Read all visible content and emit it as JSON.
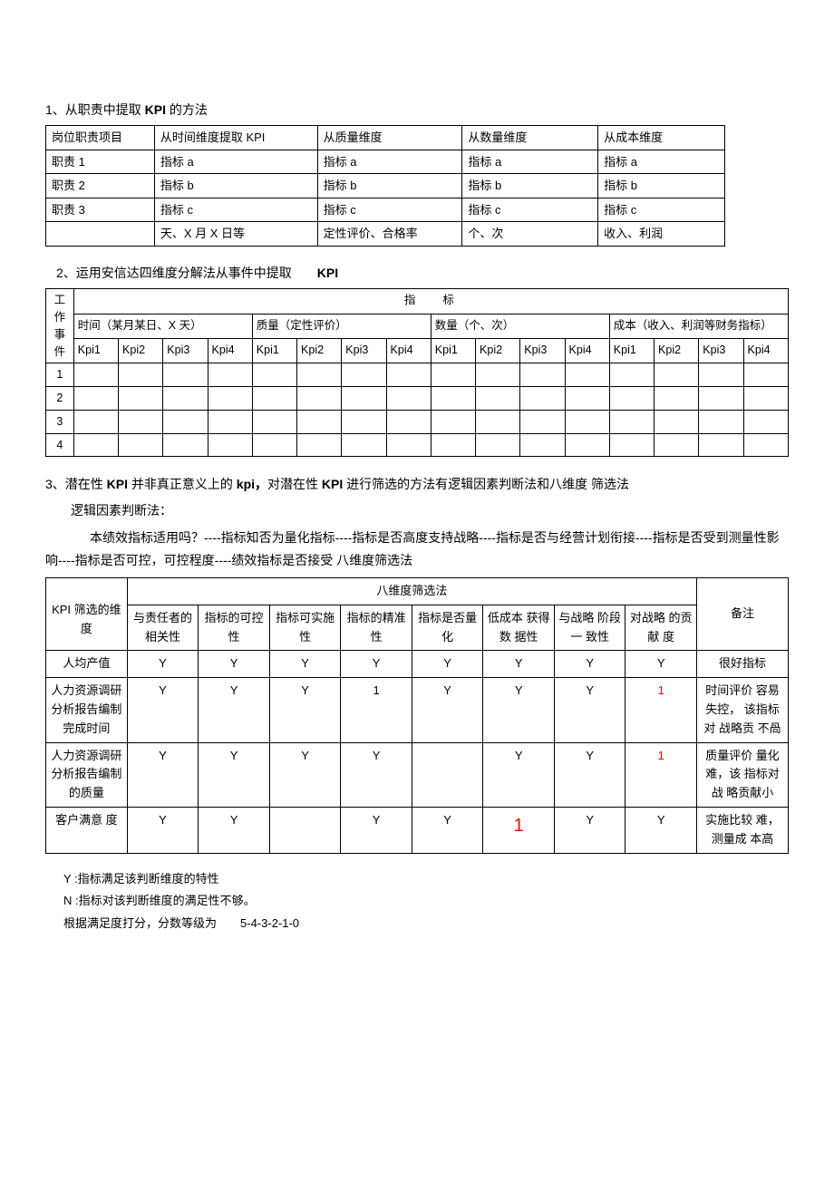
{
  "section1": {
    "title_prefix": "1、从职责中提取",
    "title_bold": " KPI ",
    "title_suffix": "的方法",
    "header": [
      "岗位职责项目",
      "从时间维度提取 KPI",
      "从质量维度",
      "从数量维度",
      "从成本维度"
    ],
    "rows": [
      [
        "职责 1",
        "指标 a",
        "指标 a",
        "指标 a",
        "指标 a"
      ],
      [
        "职责 2",
        "指标 b",
        "指标 b",
        "指标 b",
        "指标 b"
      ],
      [
        "职责 3",
        "指标 c",
        "指标 c",
        "指标 c",
        "指标 c"
      ],
      [
        "",
        "天、X 月 X 日等",
        "定性评价、合格率",
        "个、次",
        "收入、利润"
      ]
    ]
  },
  "section2": {
    "title_prefix": "2、运用安信达四维度分解法从事件中提取",
    "title_bold": "　　KPI",
    "rowhead_label": "工作事件",
    "lvl1": "指标",
    "lvl2": [
      "时间（某月某日、X 天）",
      "质量（定性评价）",
      "数量（个、次）",
      "成本（收入、利润等财务指标）"
    ],
    "kpi_labels": [
      "Kpi1",
      "Kpi2",
      "Kpi3",
      "Kpi4"
    ],
    "event_rows": [
      "1",
      "2",
      "3",
      "4"
    ]
  },
  "section3": {
    "line1_a": "3、潜在性",
    "line1_b": " KPI ",
    "line1_c": "并非真正意义上的",
    "line1_d": " kpi，",
    "line1_e": "对潜在性",
    "line1_f": " KPI ",
    "line1_g": "进行筛选的方法有逻辑因素判断法和八维度 筛选法",
    "line2": "逻辑因素判断法：",
    "line3": "本绩效指标适用吗？----指标知否为量化指标----指标是否高度支持战略----指标是否与经营计划衔接----指标是否受到测量性影响----指标是否可控，可控程度----绩效指标是否接受  八维度筛选法",
    "tbl": {
      "rowhead": "KPI 筛选的维度",
      "lvl1": "八维度筛选法",
      "dims": [
        "与责任者的相关性",
        "指标的可控性",
        "指标可实施性",
        "指标的精准性",
        "指标是否量化",
        "低成本 获得数 据性",
        "与战略 阶段一 致性",
        "对战略 的贡献 度"
      ],
      "remark_head": "备注",
      "rows": [
        {
          "label": "人均产值",
          "cells": [
            "Y",
            "Y",
            "Y",
            "Y",
            "Y",
            "Y",
            "Y",
            "Y"
          ],
          "remark": "很好指标",
          "red_idx": []
        },
        {
          "label": "人力资源调研分析报告编制完成时间",
          "cells": [
            "Y",
            "Y",
            "Y",
            "1",
            "Y",
            "Y",
            "Y",
            "1"
          ],
          "remark": "时间评价 容易失控，  该指标对 战略贡 不咼",
          "red_idx": [
            7
          ]
        },
        {
          "label": "人力资源调研分析报告编制的质量",
          "cells": [
            "Y",
            "Y",
            "Y",
            "Y",
            "",
            "Y",
            "Y",
            "1"
          ],
          "remark": "质量评价 量化难，该 指标对战 略贡献小",
          "red_idx": [
            7
          ]
        },
        {
          "label": "客户满意  度",
          "cells": [
            "Y",
            "Y",
            "",
            "Y",
            "Y",
            "1",
            "Y",
            "Y"
          ],
          "remark": "实施比较 难，测量成 本高",
          "red_idx": [],
          "big_red_idx": 5
        }
      ]
    },
    "foot1_a": "Y ",
    "foot1_b": " :指标满足该判断维度的特性",
    "foot2_a": "N ",
    "foot2_b": " :指标对该判断维度的满足性不够。",
    "foot3_a": "根据满足度打分，分数等级为",
    "foot3_b": "　　5-4-3-2-1-0"
  }
}
